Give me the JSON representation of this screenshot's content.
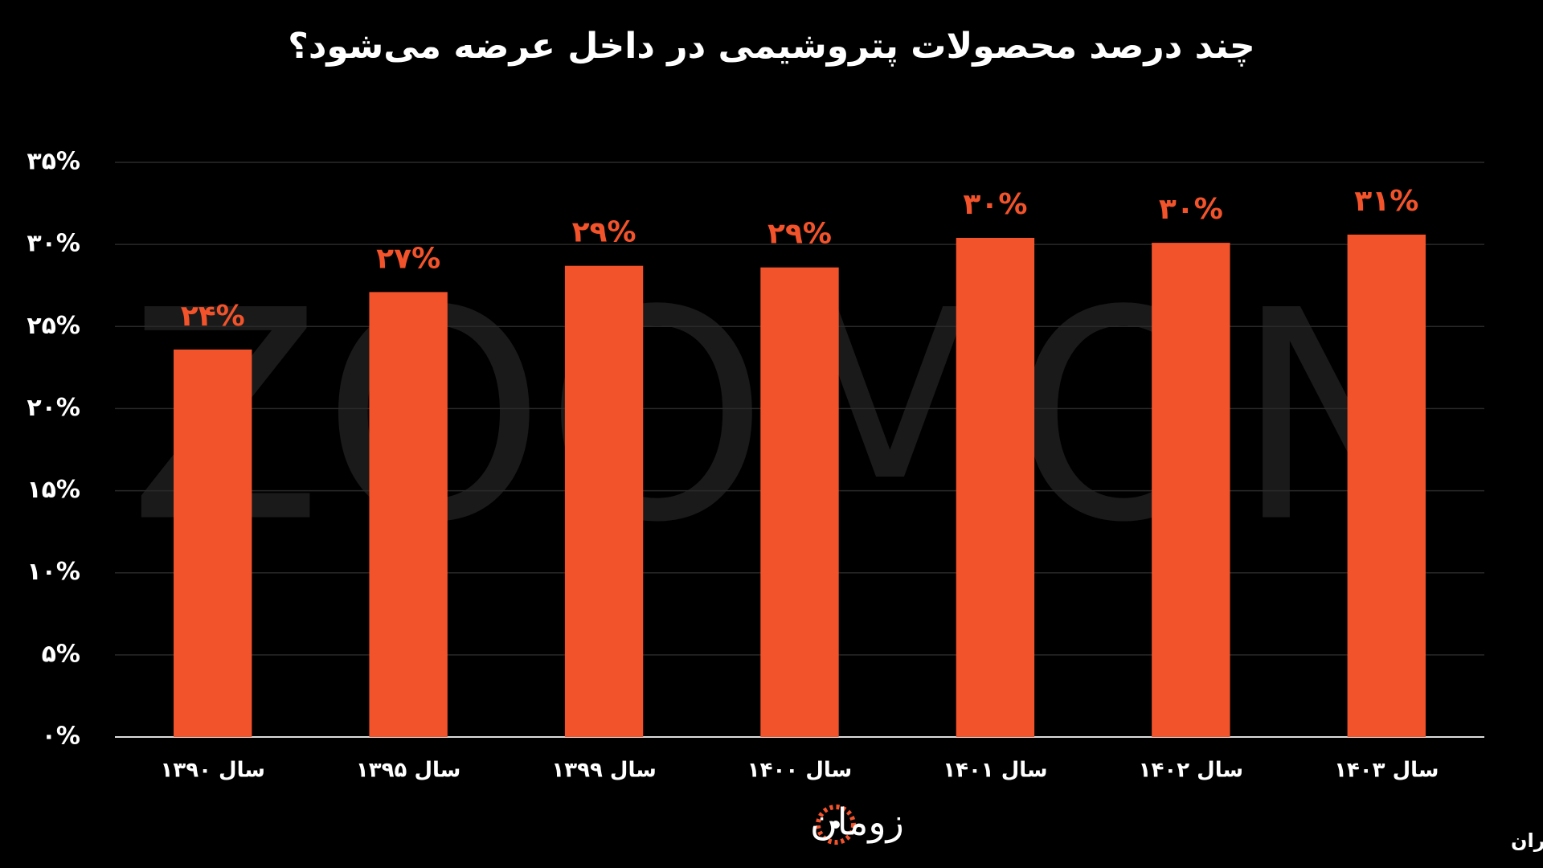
{
  "chart_data": {
    "type": "bar",
    "title": "چند درصد محصولات پتروشیمی در داخل عرضه می‌شود؟",
    "categories": [
      "سال ۱۳۹۰",
      "سال ۱۳۹۵",
      "سال ۱۳۹۹",
      "سال ۱۴۰۰",
      "سال ۱۴۰۱",
      "سال ۱۴۰۲",
      "سال ۱۴۰۳"
    ],
    "values": [
      23.6,
      27.1,
      28.7,
      28.6,
      30.4,
      30.1,
      30.6
    ],
    "value_labels": [
      "۲۴%",
      "۲۷%",
      "۲۹%",
      "۲۹%",
      "۳۰%",
      "۳۰%",
      "۳۱%"
    ],
    "color": "#f2532b",
    "ylim": [
      0,
      35
    ],
    "yticks": [
      {
        "value": 0,
        "label": "۰%"
      },
      {
        "value": 5,
        "label": "۵%"
      },
      {
        "value": 10,
        "label": "۱۰%"
      },
      {
        "value": 15,
        "label": "۱۵%"
      },
      {
        "value": 20,
        "label": "۲۰%"
      },
      {
        "value": 25,
        "label": "۲۵%"
      },
      {
        "value": 30,
        "label": "۳۰%"
      },
      {
        "value": 35,
        "label": "۳۵%"
      }
    ],
    "grid": true,
    "watermark": "ZOOMON",
    "logo": "زومان",
    "source": "منبع: مرکز آمار ایران"
  }
}
